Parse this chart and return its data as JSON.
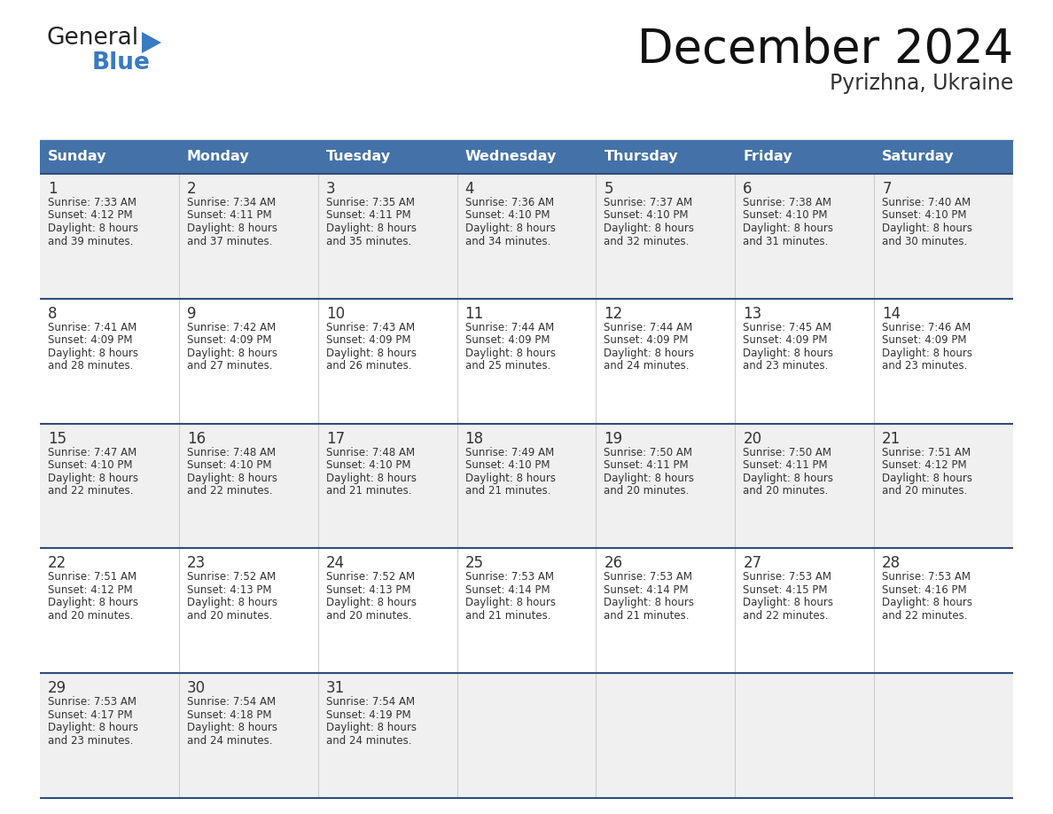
{
  "title": "December 2024",
  "subtitle": "Pyrizhna, Ukraine",
  "header_bg": "#4472a8",
  "header_text": "#ffffff",
  "cell_bg_odd": "#f0f0f0",
  "cell_bg_even": "#ffffff",
  "divider_color": "#2e4d7b",
  "grid_line_color": "#cccccc",
  "text_color": "#333333",
  "logo_general_color": "#222222",
  "logo_blue_color": "#3a7abf",
  "days_of_week": [
    "Sunday",
    "Monday",
    "Tuesday",
    "Wednesday",
    "Thursday",
    "Friday",
    "Saturday"
  ],
  "weeks": [
    [
      {
        "day": "1",
        "sunrise": "7:33 AM",
        "sunset": "4:12 PM",
        "daylight": "8 hours",
        "daylight2": "and 39 minutes."
      },
      {
        "day": "2",
        "sunrise": "7:34 AM",
        "sunset": "4:11 PM",
        "daylight": "8 hours",
        "daylight2": "and 37 minutes."
      },
      {
        "day": "3",
        "sunrise": "7:35 AM",
        "sunset": "4:11 PM",
        "daylight": "8 hours",
        "daylight2": "and 35 minutes."
      },
      {
        "day": "4",
        "sunrise": "7:36 AM",
        "sunset": "4:10 PM",
        "daylight": "8 hours",
        "daylight2": "and 34 minutes."
      },
      {
        "day": "5",
        "sunrise": "7:37 AM",
        "sunset": "4:10 PM",
        "daylight": "8 hours",
        "daylight2": "and 32 minutes."
      },
      {
        "day": "6",
        "sunrise": "7:38 AM",
        "sunset": "4:10 PM",
        "daylight": "8 hours",
        "daylight2": "and 31 minutes."
      },
      {
        "day": "7",
        "sunrise": "7:40 AM",
        "sunset": "4:10 PM",
        "daylight": "8 hours",
        "daylight2": "and 30 minutes."
      }
    ],
    [
      {
        "day": "8",
        "sunrise": "7:41 AM",
        "sunset": "4:09 PM",
        "daylight": "8 hours",
        "daylight2": "and 28 minutes."
      },
      {
        "day": "9",
        "sunrise": "7:42 AM",
        "sunset": "4:09 PM",
        "daylight": "8 hours",
        "daylight2": "and 27 minutes."
      },
      {
        "day": "10",
        "sunrise": "7:43 AM",
        "sunset": "4:09 PM",
        "daylight": "8 hours",
        "daylight2": "and 26 minutes."
      },
      {
        "day": "11",
        "sunrise": "7:44 AM",
        "sunset": "4:09 PM",
        "daylight": "8 hours",
        "daylight2": "and 25 minutes."
      },
      {
        "day": "12",
        "sunrise": "7:44 AM",
        "sunset": "4:09 PM",
        "daylight": "8 hours",
        "daylight2": "and 24 minutes."
      },
      {
        "day": "13",
        "sunrise": "7:45 AM",
        "sunset": "4:09 PM",
        "daylight": "8 hours",
        "daylight2": "and 23 minutes."
      },
      {
        "day": "14",
        "sunrise": "7:46 AM",
        "sunset": "4:09 PM",
        "daylight": "8 hours",
        "daylight2": "and 23 minutes."
      }
    ],
    [
      {
        "day": "15",
        "sunrise": "7:47 AM",
        "sunset": "4:10 PM",
        "daylight": "8 hours",
        "daylight2": "and 22 minutes."
      },
      {
        "day": "16",
        "sunrise": "7:48 AM",
        "sunset": "4:10 PM",
        "daylight": "8 hours",
        "daylight2": "and 22 minutes."
      },
      {
        "day": "17",
        "sunrise": "7:48 AM",
        "sunset": "4:10 PM",
        "daylight": "8 hours",
        "daylight2": "and 21 minutes."
      },
      {
        "day": "18",
        "sunrise": "7:49 AM",
        "sunset": "4:10 PM",
        "daylight": "8 hours",
        "daylight2": "and 21 minutes."
      },
      {
        "day": "19",
        "sunrise": "7:50 AM",
        "sunset": "4:11 PM",
        "daylight": "8 hours",
        "daylight2": "and 20 minutes."
      },
      {
        "day": "20",
        "sunrise": "7:50 AM",
        "sunset": "4:11 PM",
        "daylight": "8 hours",
        "daylight2": "and 20 minutes."
      },
      {
        "day": "21",
        "sunrise": "7:51 AM",
        "sunset": "4:12 PM",
        "daylight": "8 hours",
        "daylight2": "and 20 minutes."
      }
    ],
    [
      {
        "day": "22",
        "sunrise": "7:51 AM",
        "sunset": "4:12 PM",
        "daylight": "8 hours",
        "daylight2": "and 20 minutes."
      },
      {
        "day": "23",
        "sunrise": "7:52 AM",
        "sunset": "4:13 PM",
        "daylight": "8 hours",
        "daylight2": "and 20 minutes."
      },
      {
        "day": "24",
        "sunrise": "7:52 AM",
        "sunset": "4:13 PM",
        "daylight": "8 hours",
        "daylight2": "and 20 minutes."
      },
      {
        "day": "25",
        "sunrise": "7:53 AM",
        "sunset": "4:14 PM",
        "daylight": "8 hours",
        "daylight2": "and 21 minutes."
      },
      {
        "day": "26",
        "sunrise": "7:53 AM",
        "sunset": "4:14 PM",
        "daylight": "8 hours",
        "daylight2": "and 21 minutes."
      },
      {
        "day": "27",
        "sunrise": "7:53 AM",
        "sunset": "4:15 PM",
        "daylight": "8 hours",
        "daylight2": "and 22 minutes."
      },
      {
        "day": "28",
        "sunrise": "7:53 AM",
        "sunset": "4:16 PM",
        "daylight": "8 hours",
        "daylight2": "and 22 minutes."
      }
    ],
    [
      {
        "day": "29",
        "sunrise": "7:53 AM",
        "sunset": "4:17 PM",
        "daylight": "8 hours",
        "daylight2": "and 23 minutes."
      },
      {
        "day": "30",
        "sunrise": "7:54 AM",
        "sunset": "4:18 PM",
        "daylight": "8 hours",
        "daylight2": "and 24 minutes."
      },
      {
        "day": "31",
        "sunrise": "7:54 AM",
        "sunset": "4:19 PM",
        "daylight": "8 hours",
        "daylight2": "and 24 minutes."
      },
      null,
      null,
      null,
      null
    ]
  ]
}
